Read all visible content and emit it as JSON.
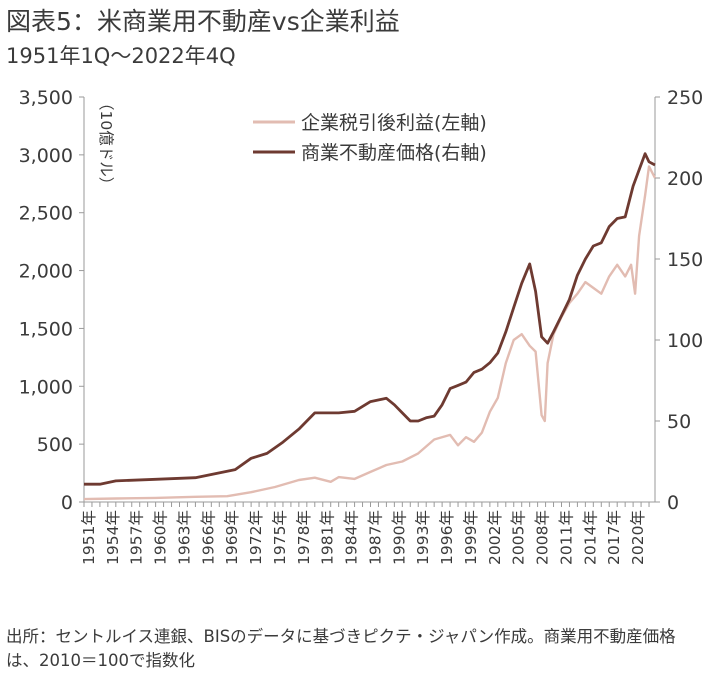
{
  "title": "図表5：米商業用不動産vs企業利益",
  "subtitle": "1951年1Q～2022年4Q",
  "source_note": "出所：セントルイス連銀、BISのデータに基づきピクテ・ジャパン作成。商業用不動産価格は、2010＝100で指数化",
  "chart_data": {
    "type": "line",
    "unit_label": "（10億ドル）",
    "colors": {
      "profits": "#e2bcb2",
      "prices": "#6e3a31",
      "axis": "#9a9a9a"
    },
    "left_axis": {
      "min": 0,
      "max": 3500,
      "ticks": [
        "0",
        "500",
        "1,000",
        "1,500",
        "2,000",
        "2,500",
        "3,000",
        "3,500"
      ],
      "tick_values": [
        0,
        500,
        1000,
        1500,
        2000,
        2500,
        3000,
        3500
      ]
    },
    "right_axis": {
      "min": 0,
      "max": 250,
      "ticks": [
        "0",
        "50",
        "100",
        "150",
        "200",
        "250"
      ],
      "tick_values": [
        0,
        50,
        100,
        150,
        200,
        250
      ]
    },
    "x_labels": [
      "1951年",
      "1954年",
      "1957年",
      "1960年",
      "1963年",
      "1966年",
      "1969年",
      "1972年",
      "1975年",
      "1978年",
      "1981年",
      "1984年",
      "1987年",
      "1990年",
      "1993年",
      "1996年",
      "1999年",
      "2002年",
      "2005年",
      "2008年",
      "2011年",
      "2014年",
      "2017年",
      "2020年"
    ],
    "x_label_years": [
      1951,
      1954,
      1957,
      1960,
      1963,
      1966,
      1969,
      1972,
      1975,
      1978,
      1981,
      1984,
      1987,
      1990,
      1993,
      1996,
      1999,
      2002,
      2005,
      2008,
      2011,
      2014,
      2017,
      2020
    ],
    "x_range": [
      1951.0,
      2022.75
    ],
    "legend": {
      "position": "top-center"
    },
    "series": [
      {
        "name": "企業税引後利益(左軸)",
        "axis": "left",
        "x": [
          1951,
          1955,
          1960,
          1965,
          1969,
          1972,
          1975,
          1978,
          1980,
          1982,
          1983,
          1985,
          1987,
          1989,
          1991,
          1993,
          1995,
          1997,
          1998,
          1999,
          2000,
          2001,
          2002,
          2003,
          2004,
          2005,
          2006,
          2007,
          2007.75,
          2008.5,
          2008.9,
          2009.25,
          2010,
          2011,
          2012,
          2013,
          2014,
          2015,
          2016,
          2017,
          2018,
          2019,
          2019.75,
          2020.25,
          2020.75,
          2021.5,
          2022,
          2022.75
        ],
        "y": [
          25,
          30,
          35,
          45,
          50,
          85,
          130,
          190,
          210,
          175,
          215,
          200,
          260,
          320,
          350,
          420,
          540,
          580,
          490,
          560,
          520,
          600,
          780,
          900,
          1200,
          1400,
          1450,
          1350,
          1300,
          750,
          700,
          1200,
          1450,
          1600,
          1720,
          1800,
          1900,
          1850,
          1800,
          1950,
          2050,
          1950,
          2050,
          1800,
          2300,
          2650,
          2900,
          2800
        ]
      },
      {
        "name": "商業不動産価格(右軸)",
        "axis": "right",
        "x": [
          1951,
          1953,
          1955,
          1960,
          1965,
          1967,
          1970,
          1972,
          1974,
          1976,
          1978,
          1980,
          1981,
          1983,
          1985,
          1987,
          1989,
          1990,
          1991,
          1992,
          1993,
          1994,
          1995,
          1996,
          1997,
          1998,
          1999,
          2000,
          2001,
          2002,
          2003,
          2004,
          2005,
          2006,
          2007,
          2007.75,
          2008.5,
          2009.25,
          2010,
          2011,
          2012,
          2013,
          2014,
          2015,
          2016,
          2017,
          2018,
          2019,
          2020,
          2020.75,
          2021.5,
          2022,
          2022.75
        ],
        "y": [
          11,
          11,
          13,
          14,
          15,
          17,
          20,
          27,
          30,
          37,
          45,
          55,
          55,
          55,
          56,
          62,
          64,
          60,
          55,
          50,
          50,
          52,
          53,
          60,
          70,
          72,
          74,
          80,
          82,
          86,
          92,
          105,
          120,
          135,
          147,
          130,
          102,
          98,
          105,
          115,
          125,
          140,
          150,
          158,
          160,
          170,
          175,
          176,
          195,
          205,
          215,
          210,
          208
        ]
      }
    ]
  }
}
